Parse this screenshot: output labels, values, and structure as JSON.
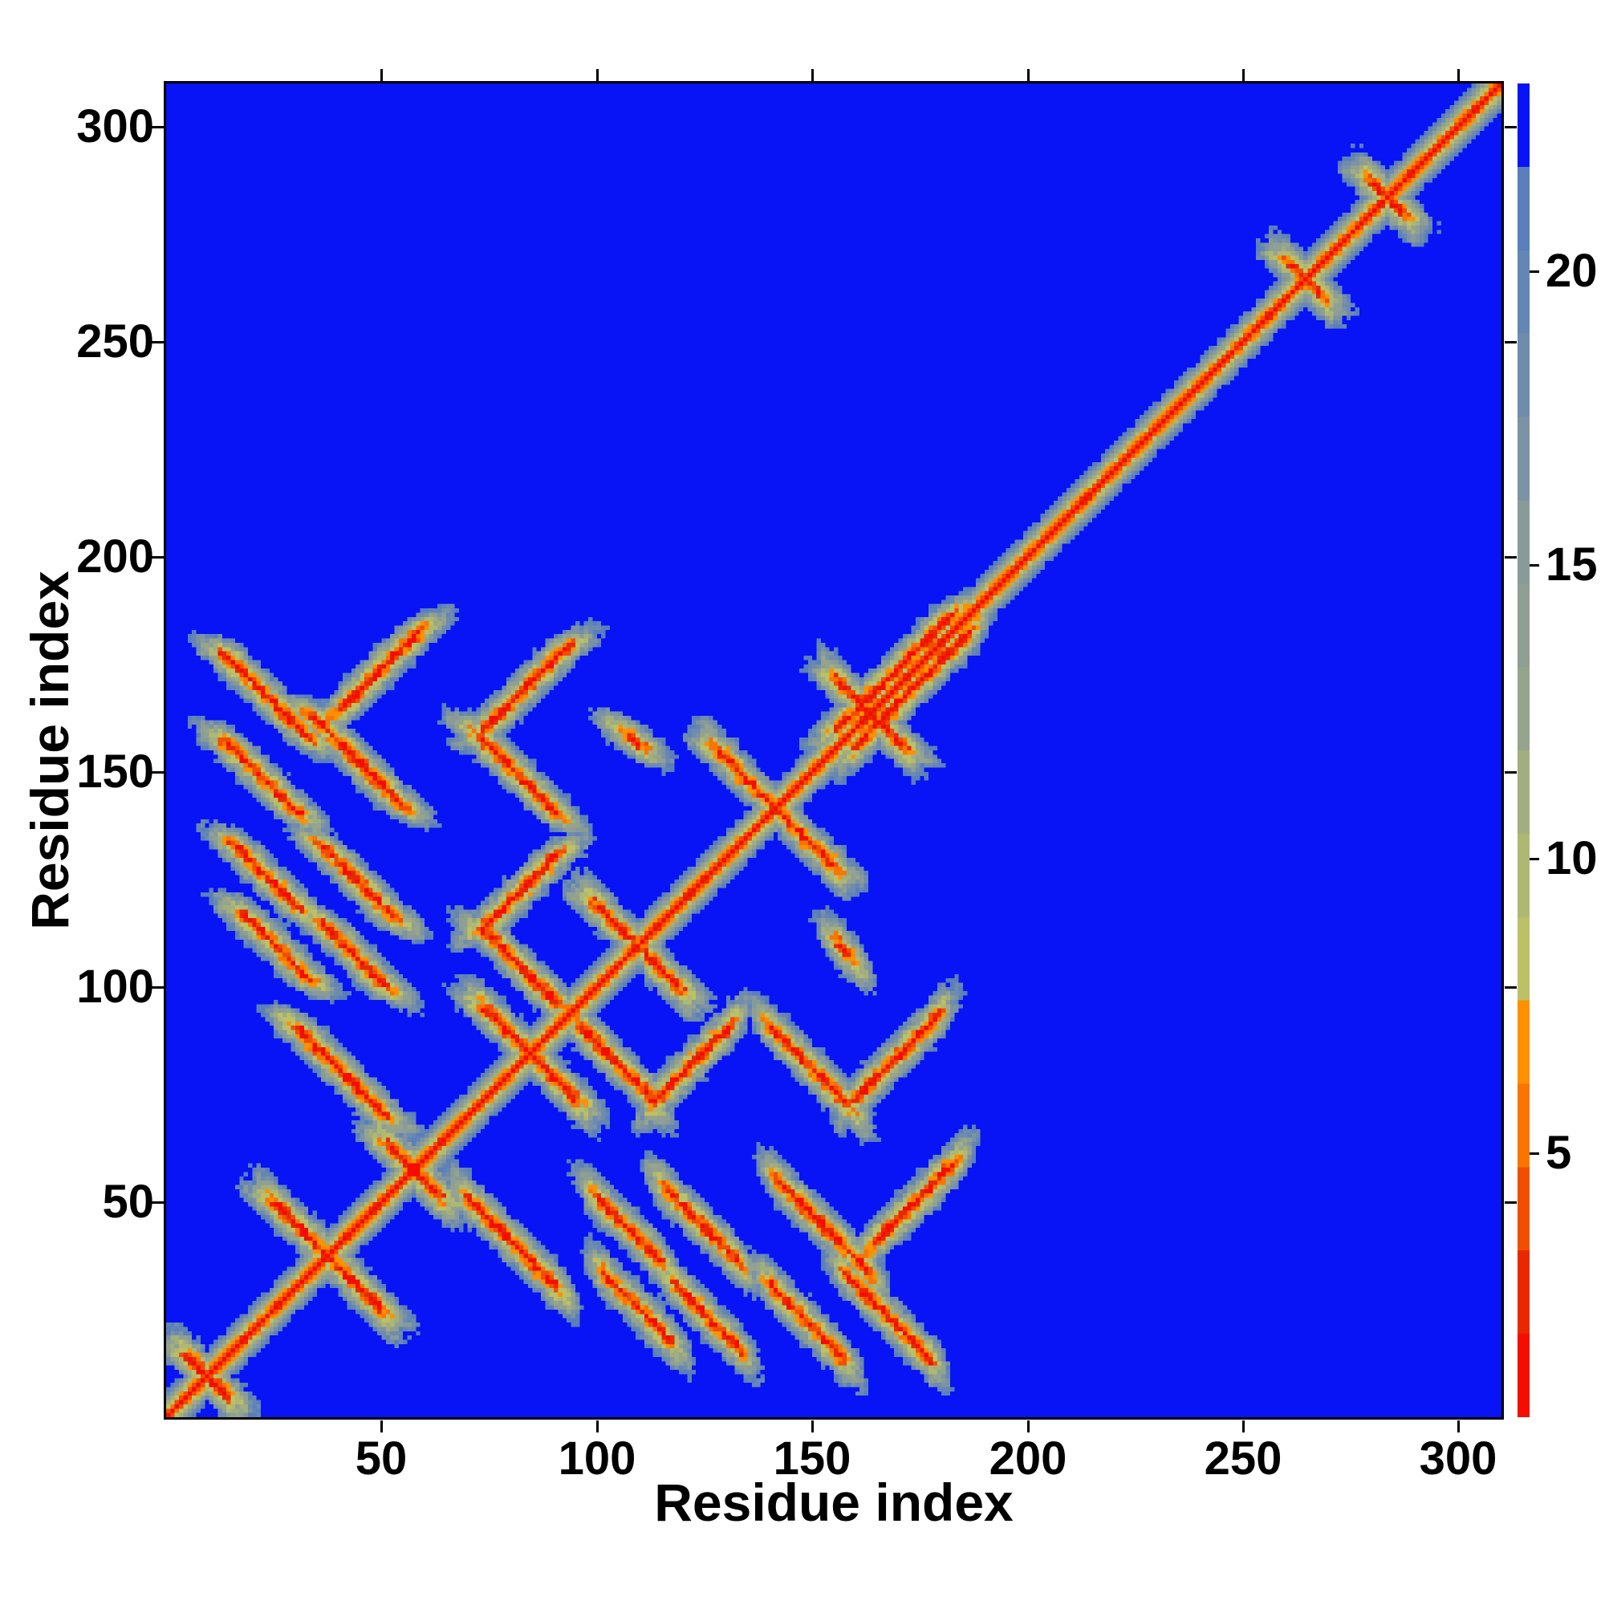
{
  "figure": {
    "background_color": "#ffffff",
    "kind": "protein residue-residue distance map heatmap with colorbar"
  },
  "chart_data": {
    "type": "heatmap",
    "title": "",
    "xlabel": "Residue index",
    "ylabel": "Residue index",
    "x_range": [
      0,
      310
    ],
    "y_range": [
      0,
      310
    ],
    "x_ticks": [
      50,
      100,
      150,
      200,
      250,
      300
    ],
    "y_ticks": [
      50,
      100,
      150,
      200,
      250,
      300
    ],
    "grid": false,
    "legend_position": "none",
    "colorbar": {
      "position": "right",
      "ticks": [
        5,
        10,
        15,
        20
      ],
      "value_min": 0.5,
      "value_max": 23.2,
      "discrete_steps": 16,
      "colors_low_to_high": [
        "#f50d00",
        "#ea2800",
        "#f24e00",
        "#f97500",
        "#ff9000",
        "#bcc066",
        "#afb872",
        "#a2ae80",
        "#95a48d",
        "#8f9f93",
        "#889b99",
        "#7b93a4",
        "#6f8bae",
        "#6486b4",
        "#5a7fba",
        "#0813f6"
      ]
    },
    "background_far_color": "#0813f6",
    "diagonal_core_color": "#f50d00",
    "orange_speckle_color": "#ff9000",
    "cluster_halo_color": "#a2ae80",
    "symmetric": true,
    "matrix_model": {
      "description": "Symmetric Ca-Ca distance map. Value ~ min(3.45*|i-j|, distance to nearest contact segment *3.3 + noise), clamped to [0.5,23.1]. Contact clusters occupy residues ~5-188; residues ~188-310 show only the diagonal band.",
      "angstrom_per_residue_diagonal": 3.45,
      "angstrom_per_residue_cluster": 3.3,
      "value_clamp": [
        0.5,
        23.1
      ],
      "contact_segments_format": "[x_start, x_end, y_at_x_start, direction(+1 parallel / -1 antiparallel)] ; mirrored across the diagonal",
      "contact_segments": [
        [
          5,
          13,
          13,
          -1
        ],
        [
          25,
          49,
          49,
          -1
        ],
        [
          52,
          62,
          62,
          -1
        ],
        [
          74,
          94,
          94,
          -1
        ],
        [
          100,
          118,
          118,
          -1
        ],
        [
          128,
          154,
          154,
          -1
        ],
        [
          156,
          170,
          170,
          -1
        ],
        [
          261,
          267,
          267,
          -1
        ],
        [
          280,
          286,
          286,
          -1
        ],
        [
          160,
          186,
          156,
          1
        ],
        [
          70,
          90,
          50,
          -1
        ],
        [
          100,
          114,
          50,
          -1
        ],
        [
          116,
          132,
          52,
          -1
        ],
        [
          142,
          162,
          54,
          -1
        ],
        [
          164,
          182,
          40,
          1
        ],
        [
          102,
          116,
          32,
          -1
        ],
        [
          118,
          132,
          30,
          -1
        ],
        [
          140,
          156,
          30,
          -1
        ],
        [
          158,
          176,
          32,
          -1
        ],
        [
          96,
          112,
          90,
          -1
        ],
        [
          114,
          130,
          74,
          1
        ],
        [
          140,
          158,
          90,
          -1
        ],
        [
          160,
          178,
          74,
          1
        ],
        [
          156,
          158,
          109,
          -1
        ]
      ]
    }
  }
}
